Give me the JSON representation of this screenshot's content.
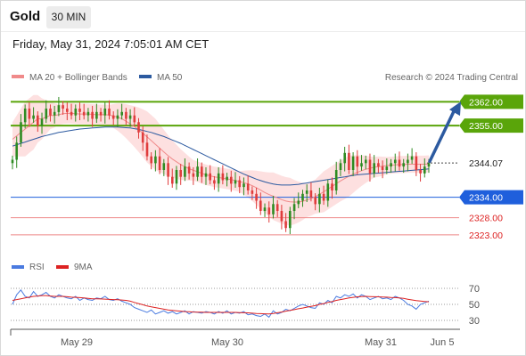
{
  "header": {
    "instrument": "Gold",
    "timeframe": "30 MIN",
    "datetime": "Friday, May 31, 2024 7:05:01 AM CET"
  },
  "legend": {
    "ma20_label": "MA 20 + Bollinger Bands",
    "ma50_label": "MA 50",
    "credit": "Research © 2024 Trading Central",
    "rsi_label": "RSI",
    "rsi_ma_label": "9MA"
  },
  "colors": {
    "up": "#2e8b22",
    "down": "#e03c3c",
    "ma20": "#f08a8a",
    "ma50": "#2c5aa0",
    "bollinger_fill": "#fde0e0",
    "resistance": "#5aa50a",
    "pivot": "#1f5fdc",
    "support": "#ee8888",
    "arrow": "#2c5aa0",
    "rsi": "#4a7be0",
    "rsi_ma": "#dd2222"
  },
  "chart_data": [
    {
      "type": "candlestick",
      "title": "Gold 30 MIN",
      "x_tick_labels": [
        "May 29",
        "May 30",
        "May 31",
        "Jun 5"
      ],
      "ylim": [
        2318,
        2366
      ],
      "levels": [
        {
          "value": 2362.0,
          "label": "2362.00",
          "kind": "resistance"
        },
        {
          "value": 2355.0,
          "label": "2355.00",
          "kind": "resistance"
        },
        {
          "value": 2344.07,
          "label": "2344.07",
          "kind": "last"
        },
        {
          "value": 2334.0,
          "label": "2334.00",
          "kind": "pivot"
        },
        {
          "value": 2328.0,
          "label": "2328.00",
          "kind": "support"
        },
        {
          "value": 2323.0,
          "label": "2323.00",
          "kind": "support"
        }
      ],
      "projection": {
        "from": 2344.5,
        "to": 2361
      },
      "closes": [
        2345,
        2350,
        2356,
        2360,
        2357,
        2358,
        2355,
        2357,
        2360,
        2358,
        2359,
        2361,
        2360,
        2359,
        2358,
        2360,
        2359,
        2358,
        2359,
        2357,
        2359,
        2358,
        2360,
        2358,
        2357,
        2358,
        2359,
        2357,
        2358,
        2356,
        2353,
        2350,
        2346,
        2344,
        2346,
        2342,
        2344,
        2340,
        2338,
        2342,
        2340,
        2343,
        2341,
        2340,
        2343,
        2340,
        2341,
        2339,
        2338,
        2341,
        2339,
        2340,
        2338,
        2339,
        2337,
        2338,
        2336,
        2335,
        2333,
        2330,
        2331,
        2329,
        2332,
        2330,
        2327,
        2325,
        2330,
        2332,
        2333,
        2335,
        2336,
        2334,
        2332,
        2335,
        2333,
        2338,
        2336,
        2342,
        2344,
        2347,
        2342,
        2346,
        2343,
        2344,
        2345,
        2341,
        2344,
        2343,
        2342,
        2343,
        2344,
        2345,
        2343,
        2344,
        2345,
        2346,
        2342,
        2341,
        2343,
        2344
      ],
      "ma20": [
        2351,
        2352,
        2353,
        2354,
        2355,
        2356,
        2357,
        2357,
        2357.5,
        2358,
        2358,
        2358.2,
        2358.5,
        2358.6,
        2358.6,
        2358.5,
        2358.4,
        2358.4,
        2358.4,
        2358.3,
        2358.2,
        2358.2,
        2358.2,
        2358.1,
        2357.8,
        2357.5,
        2357,
        2356.3,
        2355.5,
        2354.7,
        2353.8,
        2352.8,
        2351.7,
        2350.6,
        2349.5,
        2348.4,
        2347.3,
        2346.2,
        2345.2,
        2344.4,
        2343.6,
        2343,
        2342.4,
        2341.9,
        2341.5,
        2341,
        2340.6,
        2340.3,
        2340,
        2339.8,
        2339.6,
        2339.4,
        2339.2,
        2338.9,
        2338.6,
        2338.3,
        2337.9,
        2337.4,
        2336.8,
        2336.1,
        2335.4,
        2334.8,
        2334.3,
        2333.8,
        2333.3,
        2332.9,
        2332.7,
        2332.6,
        2332.6,
        2332.8,
        2333.2,
        2333.6,
        2334.2,
        2334.9,
        2335.6,
        2336.4,
        2337.2,
        2338,
        2338.8,
        2339.5,
        2340.2,
        2340.8,
        2341.3,
        2341.8,
        2342.2,
        2342.5,
        2342.8,
        2343,
        2343.1,
        2343.3,
        2343.4,
        2343.5,
        2343.6,
        2343.6,
        2343.7,
        2343.7,
        2343.7,
        2343.7,
        2343.7,
        2343.8
      ],
      "bb_width": [
        5,
        6,
        7,
        8,
        8,
        8,
        7,
        6,
        5,
        4,
        3.5,
        3,
        3,
        3,
        3,
        3,
        3,
        3,
        3,
        3,
        3,
        3,
        3,
        3,
        3.5,
        4,
        4.5,
        5,
        5.5,
        6,
        6.5,
        7,
        7.5,
        7.5,
        7.5,
        7,
        6.5,
        6,
        5.5,
        5,
        4.5,
        4,
        3.5,
        3,
        3,
        3,
        3,
        3,
        3,
        3,
        3,
        3,
        3,
        3,
        3,
        3.5,
        4,
        4.5,
        5,
        5.5,
        6,
        6.5,
        7,
        7,
        7,
        7,
        7,
        6.5,
        6,
        5.5,
        5,
        5,
        5,
        5.5,
        6,
        6,
        6,
        6,
        6,
        6,
        6,
        5.5,
        5,
        4.5,
        4,
        3.5,
        3,
        3,
        2.8,
        2.5,
        2.5,
        2.5,
        2.5,
        2.5,
        2.5,
        2.5,
        2.5,
        2.5,
        2.5,
        2.5
      ],
      "ma50": [
        2349,
        2349.4,
        2349.8,
        2350.2,
        2350.6,
        2351,
        2351.4,
        2351.8,
        2352.1,
        2352.4,
        2352.7,
        2353,
        2353.2,
        2353.4,
        2353.6,
        2353.8,
        2354,
        2354.1,
        2354.2,
        2354.3,
        2354.4,
        2354.5,
        2354.6,
        2354.6,
        2354.6,
        2354.6,
        2354.5,
        2354.4,
        2354.3,
        2354.1,
        2353.9,
        2353.6,
        2353.3,
        2353,
        2352.6,
        2352.2,
        2351.8,
        2351.3,
        2350.8,
        2350.3,
        2349.8,
        2349.2,
        2348.6,
        2348,
        2347.4,
        2346.8,
        2346.2,
        2345.6,
        2345,
        2344.4,
        2343.8,
        2343.2,
        2342.6,
        2342,
        2341.4,
        2340.8,
        2340.3,
        2339.8,
        2339.3,
        2338.9,
        2338.5,
        2338.2,
        2337.9,
        2337.7,
        2337.6,
        2337.6,
        2337.6,
        2337.7,
        2337.8,
        2338,
        2338.2,
        2338.4,
        2338.6,
        2338.8,
        2339,
        2339.2,
        2339.4,
        2339.6,
        2339.8,
        2340,
        2340.2,
        2340.4,
        2340.6,
        2340.7,
        2340.8,
        2340.9,
        2341,
        2341.1,
        2341.2,
        2341.3,
        2341.4,
        2341.5,
        2341.6,
        2341.7,
        2341.8,
        2341.9,
        2342,
        2342.1,
        2342.2,
        2342.3
      ]
    },
    {
      "type": "line",
      "title": "RSI",
      "ylim": [
        20,
        80
      ],
      "y_ticks": [
        30,
        50,
        70
      ],
      "series": [
        {
          "name": "RSI",
          "values": [
            50,
            62,
            68,
            60,
            58,
            66,
            60,
            62,
            65,
            60,
            58,
            62,
            60,
            58,
            57,
            60,
            55,
            58,
            56,
            55,
            58,
            57,
            60,
            56,
            55,
            57,
            54,
            52,
            50,
            46,
            44,
            42,
            40,
            43,
            38,
            40,
            42,
            39,
            41,
            38,
            40,
            42,
            38,
            41,
            40,
            39,
            41,
            40,
            38,
            41,
            39,
            42,
            38,
            40,
            39,
            41,
            37,
            38,
            36,
            35,
            38,
            34,
            42,
            38,
            40,
            44,
            42,
            45,
            48,
            50,
            48,
            46,
            45,
            52,
            50,
            55,
            52,
            60,
            58,
            62,
            60,
            63,
            58,
            62,
            60,
            56,
            58,
            60,
            57,
            58,
            56,
            60,
            58,
            55,
            50,
            48,
            44,
            50,
            52,
            54
          ]
        },
        {
          "name": "9MA",
          "values": [
            55,
            56,
            57,
            58,
            59,
            60,
            60.5,
            61,
            61,
            60.5,
            60,
            60,
            60,
            59.5,
            59,
            58.8,
            58.5,
            58,
            57.5,
            57,
            57,
            56.8,
            56.5,
            56.2,
            56,
            55.8,
            55.5,
            55,
            54,
            52.5,
            51,
            49.5,
            48,
            47,
            46,
            45,
            44,
            43,
            42.5,
            42,
            41.5,
            41,
            40.8,
            40.5,
            40.3,
            40.2,
            40,
            40,
            40,
            40,
            40,
            40,
            40,
            40,
            39.8,
            39.6,
            39.4,
            39,
            38.6,
            38.4,
            38.2,
            38,
            38.6,
            39.5,
            40.5,
            41.5,
            42.5,
            43.5,
            44.5,
            45.5,
            46.5,
            47.5,
            48.5,
            50,
            51,
            52.5,
            53.5,
            55,
            56,
            57,
            58,
            58.8,
            59.4,
            59.8,
            60,
            59.8,
            59.6,
            59.4,
            59.2,
            59,
            58.6,
            58.4,
            58,
            57.4,
            56.4,
            55.6,
            54.8,
            54.2,
            53.6,
            53.2
          ]
        }
      ],
      "x_tick_labels": [
        "May 29",
        "May 30",
        "May 31",
        "Jun 5"
      ]
    }
  ]
}
